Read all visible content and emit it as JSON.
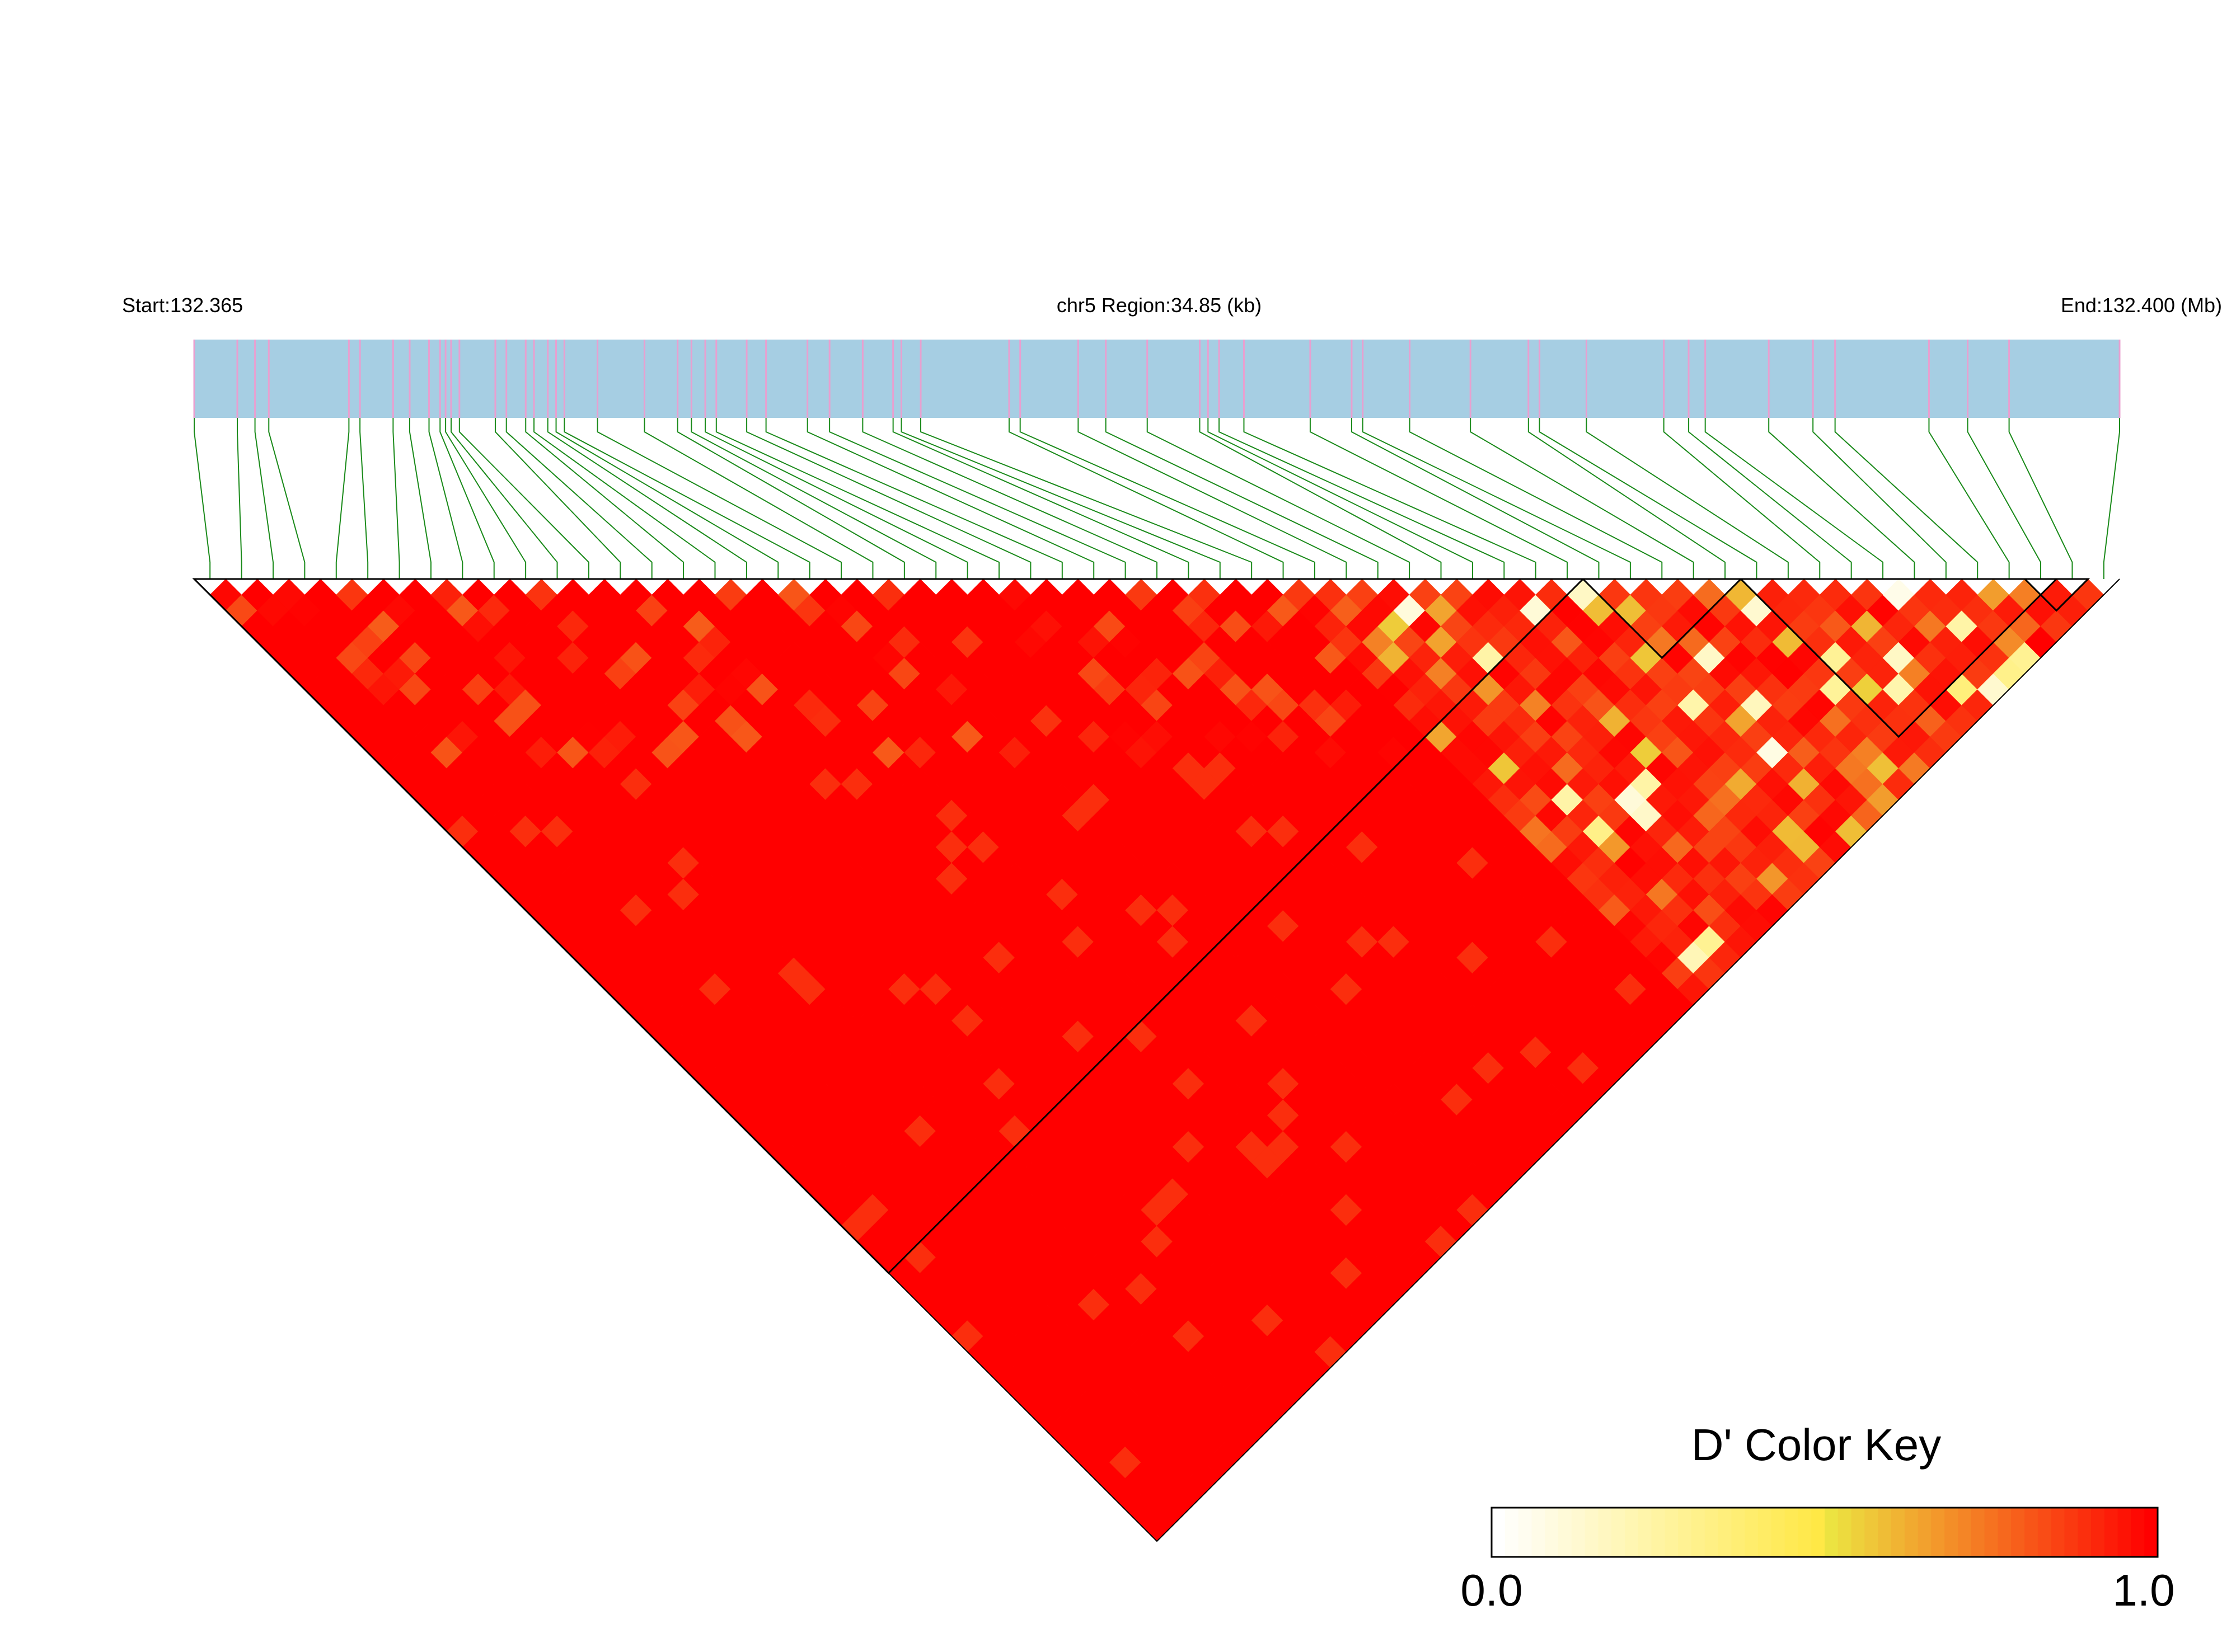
{
  "header": {
    "start_label": "Start:132.365",
    "region_label": "chr5 Region:34.85 (kb)",
    "end_label": "End:132.400 (Mb)"
  },
  "colors": {
    "region_bar": "#a6cee3",
    "snp_tick": "#e8a0d0",
    "connector": "#1a8a1a",
    "ld_high": "#ff0000",
    "block_outline": "#000000",
    "scale_low": "#ffffff",
    "scale_mid": "#ece842",
    "scale_high": "#ff0000"
  },
  "chart_data": {
    "type": "heatmap",
    "chromosome": "chr5",
    "region_start_mb": 132.365,
    "region_end_mb": 132.4,
    "region_length_kb": 34.85,
    "snp_positions_kb": [
      0.0,
      0.78,
      1.1,
      1.35,
      2.8,
      3.0,
      3.6,
      3.9,
      4.25,
      4.45,
      4.55,
      4.65,
      4.8,
      5.45,
      5.65,
      6.0,
      6.15,
      6.4,
      6.55,
      6.7,
      7.3,
      8.15,
      8.75,
      9.0,
      9.25,
      9.45,
      10.0,
      10.35,
      11.1,
      11.5,
      12.1,
      12.65,
      12.8,
      13.15,
      14.75,
      14.95,
      16.0,
      16.5,
      17.25,
      18.2,
      18.35,
      18.55,
      19.0,
      20.2,
      20.95,
      21.15,
      22.0,
      23.1,
      24.15,
      24.35,
      25.2,
      26.6,
      27.05,
      27.35,
      28.5,
      29.3,
      29.7,
      31.4,
      32.1,
      32.85,
      34.85
    ],
    "scale": {
      "title": "D' Color Key",
      "min_label": "0.0",
      "max_label": "1.0",
      "min": 0.0,
      "max": 1.0
    },
    "haplotype_blocks": [
      {
        "first_snp": 1,
        "last_snp": 44
      },
      {
        "first_snp": 45,
        "last_snp": 49
      },
      {
        "first_snp": 50,
        "last_snp": 59
      },
      {
        "first_snp": 59,
        "last_snp": 60
      }
    ]
  }
}
